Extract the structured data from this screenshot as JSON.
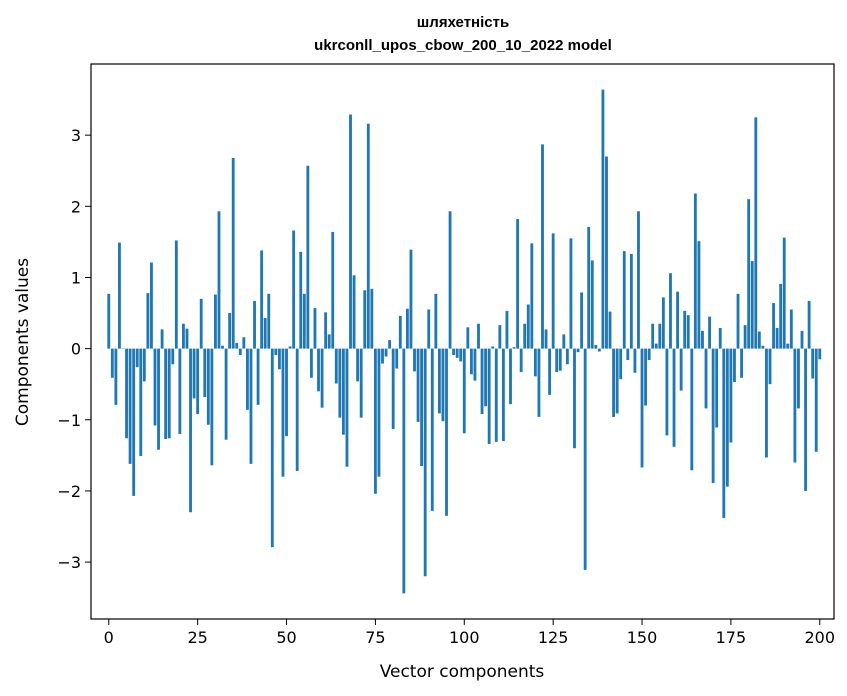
{
  "chart_data": {
    "type": "bar",
    "title": "шляхетність",
    "subtitle": "ukrconll_upos_cbow_200_10_2022 model",
    "xlabel": "Vector components",
    "ylabel": "Components values",
    "xlim": [
      -5,
      204
    ],
    "ylim": [
      -3.8,
      4.0
    ],
    "xticks": [
      0,
      25,
      50,
      75,
      100,
      125,
      150,
      175,
      200
    ],
    "yticks": [
      -3,
      -2,
      -1,
      0,
      1,
      2,
      3
    ],
    "grid": false,
    "bar_color": "#1f77b4",
    "values": [
      0.77,
      -0.41,
      -0.79,
      1.49,
      0.0,
      -1.26,
      -1.62,
      -2.07,
      -0.26,
      -1.51,
      -0.46,
      0.78,
      1.21,
      -1.08,
      -1.42,
      0.27,
      -1.27,
      -1.26,
      -0.22,
      1.52,
      -1.2,
      0.35,
      0.28,
      -2.3,
      -0.7,
      -0.92,
      0.7,
      -0.68,
      -1.07,
      -1.64,
      0.76,
      1.93,
      0.04,
      -1.28,
      0.5,
      2.68,
      0.08,
      -0.09,
      0.16,
      -0.86,
      -1.62,
      0.67,
      -0.79,
      1.38,
      0.43,
      0.77,
      -2.79,
      -0.09,
      -0.29,
      -1.8,
      -1.23,
      0.03,
      1.66,
      -1.72,
      1.36,
      0.77,
      2.57,
      -0.41,
      0.57,
      -0.6,
      -0.83,
      0.51,
      0.2,
      1.64,
      -0.49,
      -0.97,
      -1.21,
      -1.66,
      3.29,
      1.03,
      -0.46,
      -0.97,
      0.82,
      3.16,
      0.84,
      -2.04,
      -1.8,
      -0.21,
      -0.11,
      0.12,
      -1.13,
      -0.28,
      0.46,
      -3.44,
      0.56,
      1.39,
      -0.32,
      -1.03,
      -1.65,
      -3.2,
      0.55,
      -2.28,
      0.77,
      -0.91,
      -1.02,
      -2.35,
      1.93,
      -0.09,
      -0.13,
      -0.18,
      -1.19,
      0.3,
      -0.36,
      -0.45,
      0.35,
      -0.92,
      -0.81,
      -1.34,
      0.03,
      -1.31,
      0.33,
      -1.3,
      0.53,
      -0.78,
      0.02,
      1.82,
      -0.33,
      0.35,
      0.62,
      1.48,
      -0.39,
      -0.96,
      2.87,
      0.27,
      -0.65,
      1.62,
      -0.33,
      -0.31,
      0.2,
      -0.22,
      1.55,
      -1.4,
      -0.05,
      0.79,
      -3.11,
      1.71,
      1.24,
      0.05,
      -0.04,
      3.64,
      2.7,
      0.52,
      -0.96,
      -0.91,
      -0.43,
      1.37,
      -0.16,
      1.33,
      -0.34,
      1.93,
      -1.67,
      -0.8,
      -0.16,
      0.35,
      0.07,
      0.35,
      0.72,
      -1.22,
      1.06,
      -1.38,
      0.8,
      -0.59,
      0.53,
      0.47,
      -1.71,
      2.18,
      1.51,
      0.25,
      -0.84,
      0.45,
      -1.89,
      -1.11,
      0.29,
      -2.38,
      -1.94,
      -1.32,
      -0.47,
      0.77,
      -0.41,
      0.33,
      2.1,
      1.23,
      3.25,
      0.24,
      0.04,
      -1.53,
      -0.5,
      0.64,
      0.29,
      0.91,
      1.56,
      0.07,
      0.55,
      -1.6,
      -0.84,
      0.25,
      -2.0,
      0.67,
      -0.42,
      -1.45,
      -0.15
    ]
  }
}
